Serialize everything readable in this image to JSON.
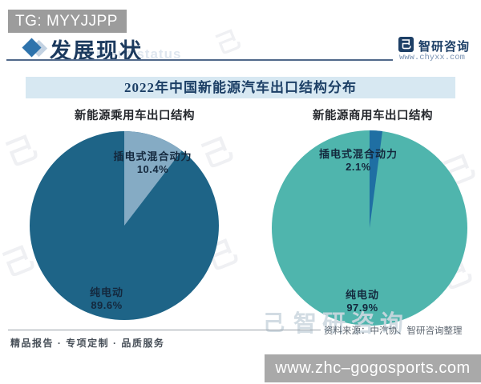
{
  "tg_badge": "TG: MYYJJPP",
  "header": {
    "section_title": "发展现状",
    "watermark_en": "ment status",
    "logo_glyph": "己",
    "logo_name": "智研咨询",
    "logo_url": "www.chyxx.com"
  },
  "banner": {
    "title": "2022年中国新能源汽车出口结构分布"
  },
  "chart_data": [
    {
      "type": "pie",
      "title": "新能源乘用车出口结构",
      "slices": [
        {
          "label": "纯电动",
          "value": 89.6,
          "display": "89.6%",
          "color": "#1e6487"
        },
        {
          "label": "插电式混合动力",
          "value": 10.4,
          "display": "10.4%",
          "color": "#85abc4"
        }
      ],
      "legend": "none",
      "start_angle_deg": 0,
      "direction": "clockwise"
    },
    {
      "type": "pie",
      "title": "新能源商用车出口结构",
      "slices": [
        {
          "label": "纯电动",
          "value": 97.9,
          "display": "97.9%",
          "color": "#4fb5ad"
        },
        {
          "label": "插电式混合动力",
          "value": 2.1,
          "display": "2.1%",
          "color": "#1f6fa3"
        }
      ],
      "legend": "none",
      "start_angle_deg": 0,
      "direction": "clockwise"
    }
  ],
  "watermark": {
    "brand": "智研咨询",
    "glyph": "己"
  },
  "footer": {
    "source": "资料来源：中汽协、智研咨询整理",
    "tagline": "精品报告 · 专项定制 · 品质服务"
  },
  "bottom_badge": "www.zhc–gogosports.com",
  "colors": {
    "banner_bg": "#d7e8f2",
    "header_text": "#1c3a5e",
    "pie1_main": "#1e6487",
    "pie1_slice": "#85abc4",
    "pie2_main": "#4fb5ad",
    "pie2_slice": "#1f6fa3",
    "badge_bg": "#9c9c9c"
  }
}
